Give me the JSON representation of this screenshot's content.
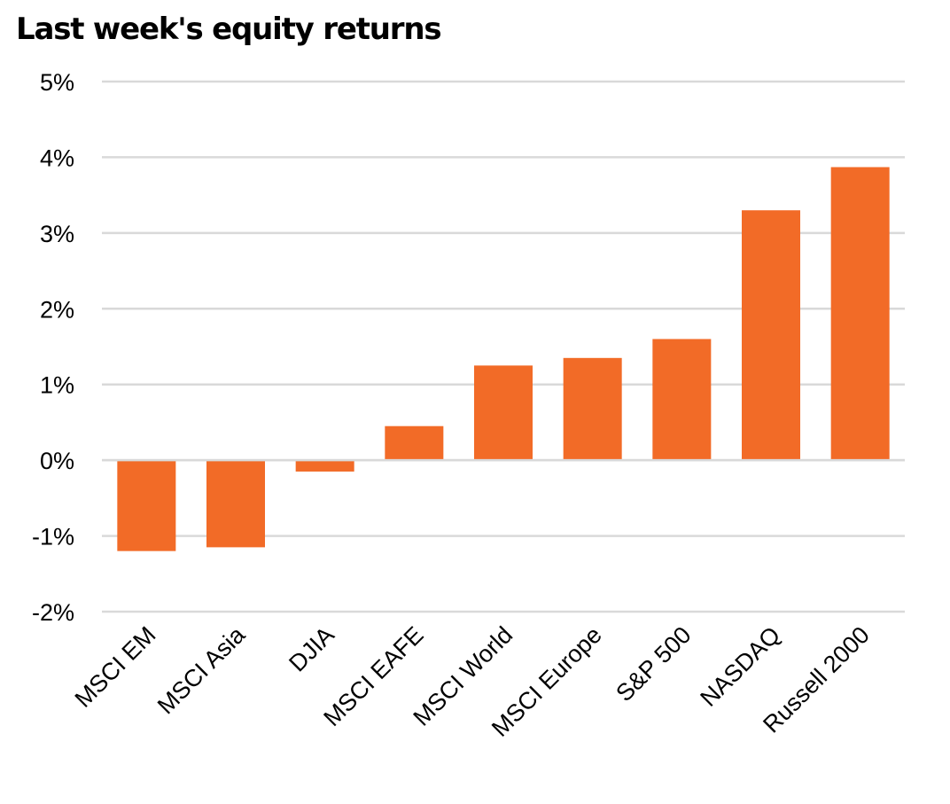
{
  "chart_data": {
    "type": "bar",
    "title": "Last week's equity returns",
    "xlabel": "",
    "ylabel": "",
    "categories": [
      "MSCI EM",
      "MSCI Asia",
      "DJIA",
      "MSCI EAFE",
      "MSCI World",
      "MSCI Europe",
      "S&P 500",
      "NASDAQ",
      "Russell 2000"
    ],
    "values": [
      -1.2,
      -1.15,
      -0.15,
      0.45,
      1.25,
      1.35,
      1.6,
      3.3,
      3.87
    ],
    "value_unit": "%",
    "ylim": [
      -2,
      5
    ],
    "yticks": [
      5,
      4,
      3,
      2,
      1,
      0,
      -1,
      -2
    ],
    "ytick_labels": [
      "5%",
      "4%",
      "3%",
      "2%",
      "1%",
      "0%",
      "-1%",
      "-2%"
    ],
    "grid": true,
    "legend": "none",
    "bar_color": "#F26B27",
    "grid_color": "#D9D9D9"
  }
}
